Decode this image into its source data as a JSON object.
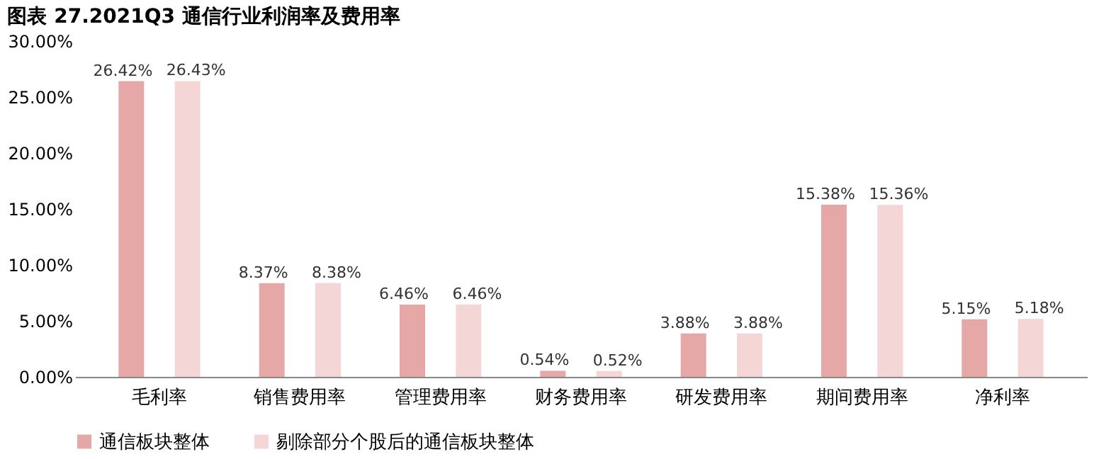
{
  "chart_data": {
    "type": "bar",
    "title": "图表 27.2021Q3 通信行业利润率及费用率",
    "categories": [
      "毛利率",
      "销售费用率",
      "管理费用率",
      "财务费用率",
      "研发费用率",
      "期间费用率",
      "净利率"
    ],
    "series": [
      {
        "name": "通信板块整体",
        "color": "#e6a7a7",
        "values": [
          26.42,
          8.37,
          6.46,
          0.54,
          3.88,
          15.38,
          5.15
        ],
        "value_labels": [
          "26.42%",
          "8.37%",
          "6.46%",
          "0.54%",
          "3.88%",
          "15.38%",
          "5.15%"
        ]
      },
      {
        "name": "剔除部分个股后的通信板块整体",
        "color": "#f5d6d6",
        "values": [
          26.43,
          8.38,
          6.46,
          0.52,
          3.88,
          15.36,
          5.18
        ],
        "value_labels": [
          "26.43%",
          "8.38%",
          "6.46%",
          "0.52%",
          "3.88%",
          "15.36%",
          "5.18%"
        ]
      }
    ],
    "ylim": [
      0,
      30
    ],
    "yticks": [
      {
        "value": 0,
        "label": "0.00%"
      },
      {
        "value": 5,
        "label": "5.00%"
      },
      {
        "value": 10,
        "label": "10.00%"
      },
      {
        "value": 15,
        "label": "15.00%"
      },
      {
        "value": 20,
        "label": "20.00%"
      },
      {
        "value": 25,
        "label": "25.00%"
      },
      {
        "value": 30,
        "label": "30.00%"
      }
    ],
    "legend": "bottom"
  }
}
